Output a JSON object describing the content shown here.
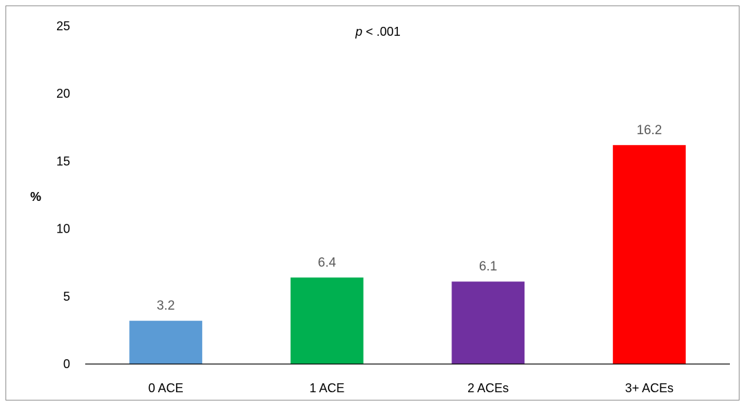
{
  "chart_data": {
    "type": "bar",
    "categories": [
      "0 ACE",
      "1 ACE",
      "2 ACEs",
      "3+ ACEs"
    ],
    "values": [
      3.2,
      6.4,
      6.1,
      16.2
    ],
    "data_labels": [
      "3.2",
      "6.4",
      "6.1",
      "16.2"
    ],
    "bar_colors": [
      "#5b9bd5",
      "#00b050",
      "#7030a0",
      "#ff0000"
    ],
    "title": "",
    "xlabel": "",
    "ylabel": "%",
    "ylim": [
      0,
      25
    ],
    "y_ticks": [
      0,
      5,
      10,
      15,
      20,
      25
    ],
    "annotation": {
      "italic": "p",
      "text": " < .001"
    },
    "grid": false,
    "legend": "none"
  }
}
